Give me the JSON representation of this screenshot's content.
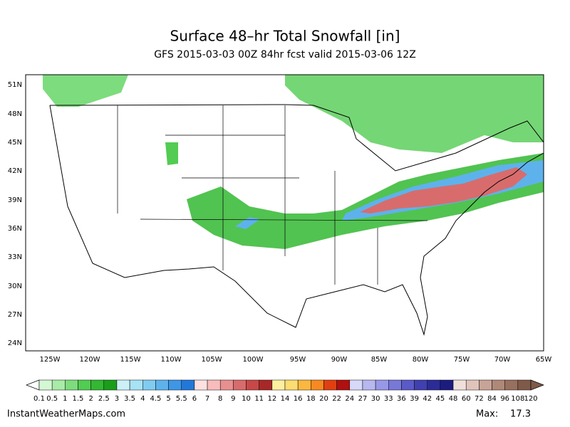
{
  "header": {
    "title": "Surface 48–hr Total Snowfall [in]",
    "subtitle": "GFS 2015-03-03 00Z 84hr fcst valid 2015-03-06 12Z"
  },
  "map": {
    "lat_labels": [
      "51N",
      "48N",
      "45N",
      "42N",
      "39N",
      "36N",
      "33N",
      "30N",
      "27N",
      "24N"
    ],
    "lon_labels": [
      "125W",
      "120W",
      "115W",
      "110W",
      "105W",
      "100W",
      "95W",
      "90W",
      "85W",
      "80W",
      "75W",
      "70W",
      "65W"
    ]
  },
  "colorbar": {
    "levels": [
      0.1,
      0.5,
      1,
      1.5,
      2,
      2.5,
      3,
      3.5,
      4,
      4.5,
      5,
      5.5,
      6,
      7,
      8,
      9,
      10,
      11,
      12,
      14,
      16,
      18,
      20,
      22,
      24,
      27,
      30,
      33,
      36,
      39,
      42,
      45,
      48,
      60,
      72,
      84,
      96,
      108,
      120
    ],
    "colors": [
      "#d4f7d4",
      "#a8eca8",
      "#7ddc7d",
      "#52cc52",
      "#33b833",
      "#1a9e1a",
      "#cdf0f8",
      "#a8e2f5",
      "#80ccf0",
      "#5eb2ec",
      "#3e96e6",
      "#2278d8",
      "#fde0e0",
      "#f8bcbc",
      "#e89090",
      "#d86c6c",
      "#c84848",
      "#a82828",
      "#fdf0a0",
      "#fddc70",
      "#fbb840",
      "#f68a20",
      "#e04010",
      "#b01010",
      "#d8d8f8",
      "#b8b8f0",
      "#9898e8",
      "#7878d8",
      "#5a5ac8",
      "#4040b0",
      "#2c2c98",
      "#1c1c80",
      "#f0e0dc",
      "#e0c4bc",
      "#c8a498",
      "#b08878",
      "#987060",
      "#805a48"
    ]
  },
  "footer": {
    "site": "InstantWeatherMaps.com",
    "max_label": "Max:",
    "max_value": 17.3
  }
}
